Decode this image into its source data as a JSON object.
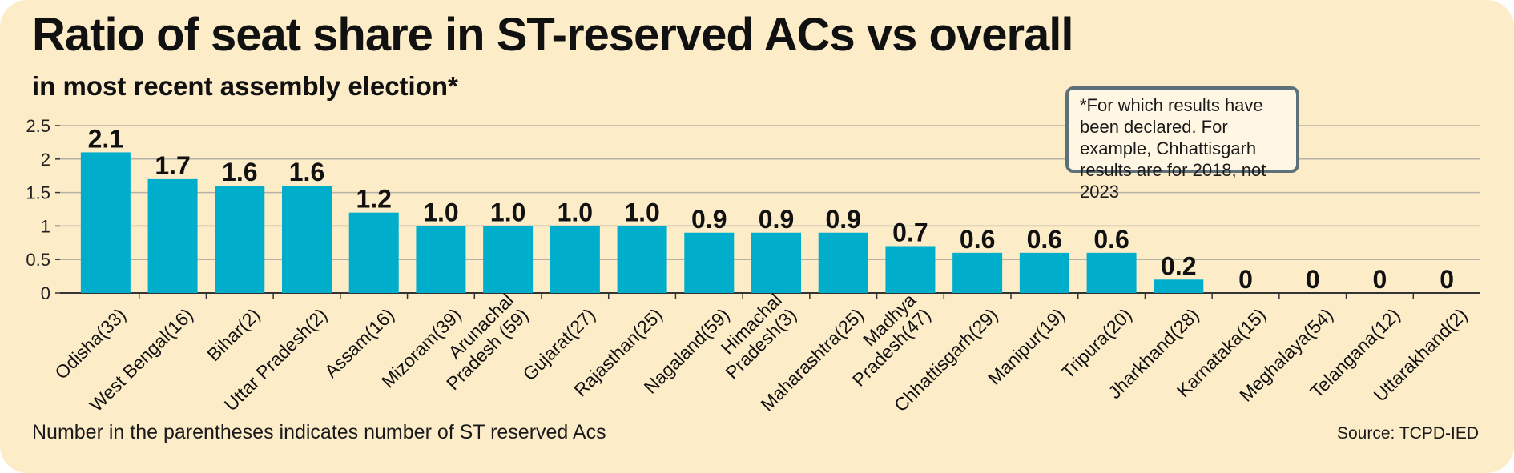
{
  "title": "Ratio of seat share in ST-reserved ACs vs overall",
  "subtitle": "in most recent assembly election*",
  "note": "*For which results have been declared. For example, Chhattisgarh results are for 2018, not 2023",
  "footnote": "Number in the parentheses indicates number of ST reserved Acs",
  "source": "Source: TCPD-IED",
  "colors": {
    "background": "#fdecc8",
    "bar": "#00aecb",
    "grid": "#b5b1a6",
    "note_border": "#5e7179"
  },
  "chart_data": {
    "type": "bar",
    "categories": [
      "Odisha(33)",
      "West Bengal(16)",
      "Bihar(2)",
      "Uttar Pradesh(2)",
      "Assam(16)",
      "Mizoram(39)",
      "Arunachal Pradesh (59)",
      "Gujarat(27)",
      "Rajasthan(25)",
      "Nagaland(59)",
      "Himachal Pradesh(3)",
      "Maharashtra(25)",
      "Madhya Pradesh(47)",
      "Chhattisgarh(29)",
      "Manipur(19)",
      "Tripura(20)",
      "Jharkhand(28)",
      "Karnataka(15)",
      "Meghalaya(54)",
      "Telangana(12)",
      "Uttarakhand(2)"
    ],
    "category_lines": [
      [
        "Odisha(33)"
      ],
      [
        "West Bengal(16)"
      ],
      [
        "Bihar(2)"
      ],
      [
        "Uttar Pradesh(2)"
      ],
      [
        "Assam(16)"
      ],
      [
        "Mizoram(39)"
      ],
      [
        "Arunachal",
        "Pradesh (59)"
      ],
      [
        "Gujarat(27)"
      ],
      [
        "Rajasthan(25)"
      ],
      [
        "Nagaland(59)"
      ],
      [
        "Himachal",
        "Pradesh(3)"
      ],
      [
        "Maharashtra(25)"
      ],
      [
        "Madhya",
        "Pradesh(47)"
      ],
      [
        "Chhattisgarh(29)"
      ],
      [
        "Manipur(19)"
      ],
      [
        "Tripura(20)"
      ],
      [
        "Jharkhand(28)"
      ],
      [
        "Karnataka(15)"
      ],
      [
        "Meghalaya(54)"
      ],
      [
        "Telangana(12)"
      ],
      [
        "Uttarakhand(2)"
      ]
    ],
    "values": [
      2.1,
      1.7,
      1.6,
      1.6,
      1.2,
      1.0,
      1.0,
      1.0,
      1.0,
      0.9,
      0.9,
      0.9,
      0.7,
      0.6,
      0.6,
      0.6,
      0.2,
      0,
      0,
      0,
      0
    ],
    "value_labels": [
      "2.1",
      "1.7",
      "1.6",
      "1.6",
      "1.2",
      "1.0",
      "1.0",
      "1.0",
      "1.0",
      "0.9",
      "0.9",
      "0.9",
      "0.7",
      "0.6",
      "0.6",
      "0.6",
      "0.2",
      "0",
      "0",
      "0",
      "0"
    ],
    "yticks": [
      0,
      0.5,
      1,
      1.5,
      2,
      2.5
    ],
    "ytick_labels": [
      "0",
      "0.5",
      "1",
      "1.5",
      "2",
      "2.5"
    ],
    "ylim": [
      0,
      2.5
    ],
    "xlabel": "",
    "ylabel": "",
    "grid": true,
    "legend": "none"
  }
}
